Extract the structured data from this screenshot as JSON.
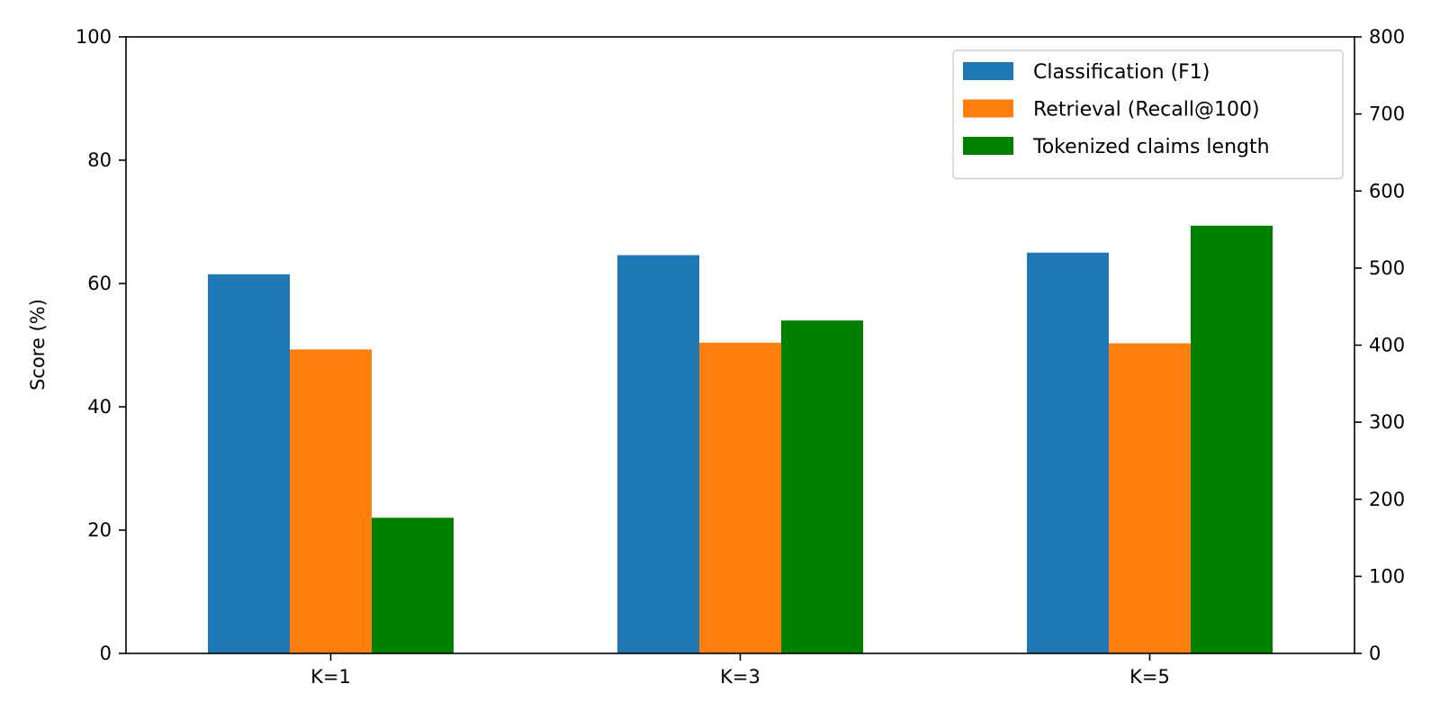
{
  "chart_data": {
    "type": "bar",
    "categories": [
      "K=1",
      "K=3",
      "K=5"
    ],
    "series": [
      {
        "name": "Classification (F1)",
        "axis": "left",
        "color": "#1f77b4",
        "values": [
          61.5,
          64.6,
          65.0
        ]
      },
      {
        "name": "Retrieval (Recall@100)",
        "axis": "left",
        "color": "#ff7f0e",
        "values": [
          49.3,
          50.4,
          50.3
        ]
      },
      {
        "name": "Tokenized claims length",
        "axis": "right",
        "color": "#008000",
        "values": [
          176,
          432,
          555
        ]
      }
    ],
    "ylabel": "Score (%)",
    "ylim": [
      0,
      100
    ],
    "yticks": [
      "0",
      "20",
      "40",
      "60",
      "80",
      "100"
    ],
    "y2lim": [
      0,
      800
    ],
    "y2ticks": [
      "0",
      "100",
      "200",
      "300",
      "400",
      "500",
      "600",
      "700",
      "800"
    ],
    "legend_position": "top-right",
    "grid": false
  }
}
